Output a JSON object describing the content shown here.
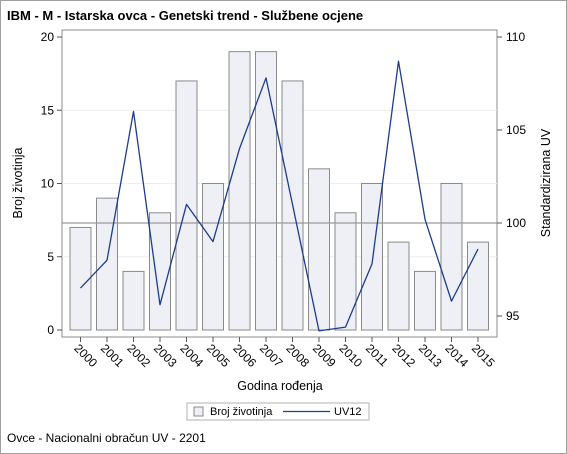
{
  "title": "IBM - M - Istarska ovca - Genetski trend - Službene ocjene",
  "footnote": "Ovce - Nacionalni obračun UV - 2201",
  "chart_data": {
    "type": "bar",
    "categories": [
      "2000",
      "2001",
      "2002",
      "2003",
      "2004",
      "2005",
      "2006",
      "2007",
      "2008",
      "2009",
      "2010",
      "2011",
      "2012",
      "2013",
      "2014",
      "2015"
    ],
    "series": [
      {
        "name": "Broj životinja",
        "type": "bar",
        "axis": "left",
        "values": [
          7,
          9,
          4,
          8,
          17,
          10,
          19,
          19,
          17,
          11,
          8,
          10,
          6,
          4,
          10,
          6
        ]
      },
      {
        "name": "UV12",
        "type": "line",
        "axis": "right",
        "values": [
          96.5,
          98.0,
          106.0,
          95.6,
          101.0,
          99.0,
          104.0,
          107.8,
          101.0,
          94.2,
          94.4,
          97.8,
          108.7,
          100.2,
          95.8,
          98.6
        ]
      }
    ],
    "xlabel": "Godina rođenja",
    "ylabel": "Broj životinja",
    "y2label": "Standardizirana UV",
    "ylim": [
      0,
      20
    ],
    "y2lim": [
      94,
      110
    ],
    "yticks": [
      0,
      5,
      10,
      15,
      20
    ],
    "y2ticks": [
      95,
      100,
      105,
      110
    ],
    "reference_line_y2": 100,
    "legend_position": "bottom",
    "colors": {
      "bar_fill": "#eef0f6",
      "bar_stroke": "#8a8a8a",
      "line": "#1c3c8c",
      "reference": "#9a9a9a"
    }
  }
}
